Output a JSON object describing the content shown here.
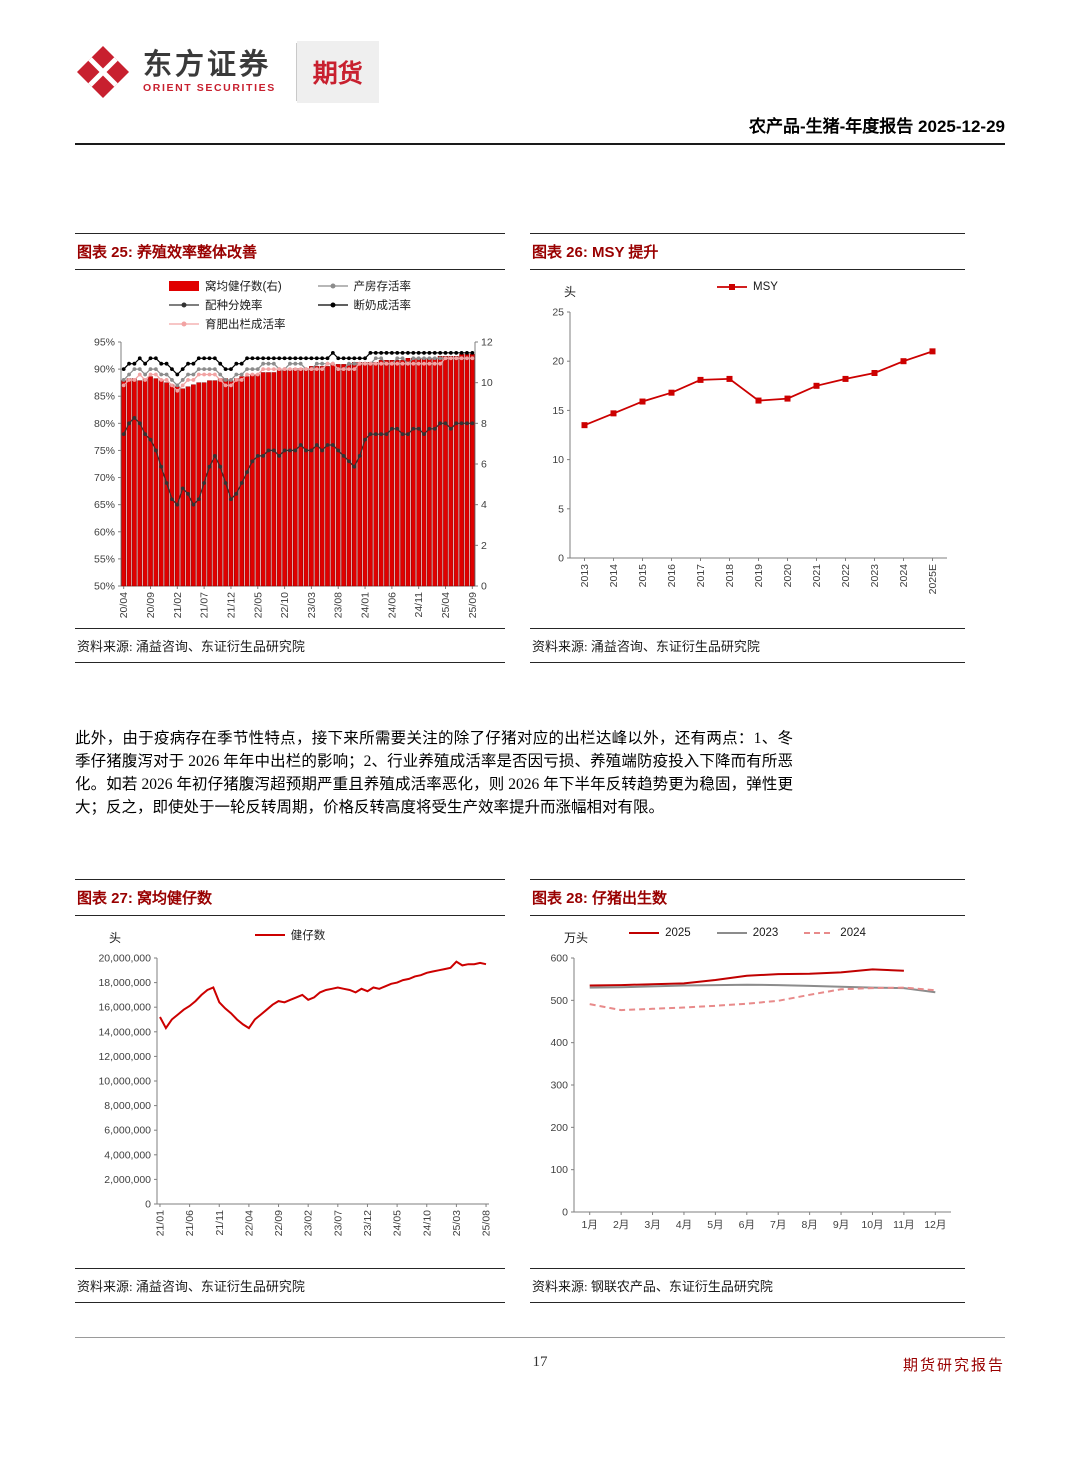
{
  "header": {
    "logo_cn": "东方证券",
    "logo_en": "ORIENT SECURITIES",
    "division": "期货",
    "report_line": "农产品-生猪-年度报告 2025-12-29"
  },
  "colors": {
    "brand_red": "#c8202f",
    "title_red": "#990000",
    "chart_red": "#cc0000"
  },
  "figures": [
    {
      "title": "图表 25: 养殖效率整体改善",
      "source": "资料来源: 涌益咨询、东证衍生品研究院"
    },
    {
      "title": "图表 26: MSY 提升",
      "source": "资料来源: 涌益咨询、东证衍生品研究院"
    },
    {
      "title": "图表 27: 窝均健仔数",
      "source": "资料来源: 涌益咨询、东证衍生品研究院"
    },
    {
      "title": "图表 28: 仔猪出生数",
      "source": "资料来源: 钢联农产品、东证衍生品研究院"
    }
  ],
  "paragraph": "此外，由于疫病存在季节性特点，接下来所需要关注的除了仔猪对应的出栏达峰以外，还有两点：1、冬季仔猪腹泻对于 2026 年年中出栏的影响；2、行业养殖成活率是否因亏损、养殖端防疫投入下降而有所恶化。如若 2026 年初仔猪腹泻超预期严重且养殖成活率恶化，则 2026 年下半年反转趋势更为稳固，弹性更大；反之，即使处于一轮反转周期，价格反转高度将受生产效率提升而涨幅相对有限。",
  "footer": {
    "page_number": "17",
    "report_type": "期货研究报告"
  },
  "chart_data": [
    {
      "type": "bar",
      "title": "养殖效率整体改善",
      "unit": "",
      "y_left": {
        "min": 50,
        "max": 95,
        "step": 5,
        "format": "percent"
      },
      "y_right": {
        "min": 0,
        "max": 12,
        "step": 2
      },
      "x_tick_every": 5,
      "x_rotate": true,
      "categories": [
        "20/04",
        "20/05",
        "20/06",
        "20/07",
        "20/08",
        "20/09",
        "20/10",
        "20/11",
        "20/12",
        "21/01",
        "21/02",
        "21/03",
        "21/04",
        "21/05",
        "21/06",
        "21/07",
        "21/08",
        "21/09",
        "21/10",
        "21/11",
        "21/12",
        "22/01",
        "22/02",
        "22/03",
        "22/04",
        "22/05",
        "22/06",
        "22/07",
        "22/08",
        "22/09",
        "22/10",
        "22/11",
        "22/12",
        "23/01",
        "23/02",
        "23/03",
        "23/04",
        "23/05",
        "23/06",
        "23/07",
        "23/08",
        "23/09",
        "23/10",
        "23/11",
        "23/12",
        "24/01",
        "24/02",
        "24/03",
        "24/04",
        "24/05",
        "24/06",
        "24/07",
        "24/08",
        "24/09",
        "24/10",
        "24/11",
        "24/12",
        "25/01",
        "25/02",
        "25/03",
        "25/04",
        "25/05",
        "25/06",
        "25/07",
        "25/08",
        "25/09"
      ],
      "series": [
        {
          "name": "窝均健仔数(右)",
          "type": "bar",
          "axis": "right",
          "color": "#e00000",
          "edge": "#8b0000",
          "values": [
            10.1,
            10.2,
            10.2,
            10.1,
            10.2,
            10.3,
            10.2,
            10.1,
            10.0,
            9.9,
            9.8,
            9.7,
            9.8,
            9.9,
            10.0,
            10.0,
            10.1,
            10.1,
            10.2,
            10.2,
            10.1,
            10.2,
            10.3,
            10.3,
            10.4,
            10.4,
            10.5,
            10.5,
            10.5,
            10.6,
            10.6,
            10.6,
            10.7,
            10.7,
            10.7,
            10.8,
            10.8,
            10.8,
            10.8,
            10.9,
            10.9,
            10.9,
            10.9,
            11.0,
            11.0,
            11.0,
            11.0,
            11.0,
            11.1,
            11.1,
            11.1,
            11.1,
            11.1,
            11.2,
            11.2,
            11.2,
            11.2,
            11.2,
            11.2,
            11.3,
            11.3,
            11.3,
            11.3,
            11.4,
            11.4,
            11.4
          ]
        },
        {
          "name": "产房存活率",
          "type": "line",
          "axis": "left",
          "color": "#8c8c8c",
          "marker": "circle",
          "width": 1.2,
          "values": [
            88,
            89,
            90,
            90,
            89,
            90,
            90,
            89,
            89,
            88,
            87,
            88,
            89,
            89,
            90,
            90,
            90,
            90,
            89,
            88,
            88,
            89,
            89,
            90,
            90,
            90,
            91,
            91,
            91,
            90,
            90,
            91,
            91,
            91,
            90,
            90,
            91,
            91,
            91,
            91,
            90,
            90,
            91,
            91,
            91,
            91,
            91,
            92,
            92,
            91,
            91,
            92,
            92,
            91,
            92,
            92,
            92,
            92,
            92,
            92,
            92,
            92,
            92,
            92,
            92,
            92
          ]
        },
        {
          "name": "配种分娩率",
          "type": "line",
          "axis": "left",
          "color": "#333333",
          "marker": "circle",
          "width": 1.2,
          "values": [
            78,
            80,
            81,
            80,
            78,
            77,
            75,
            72,
            69,
            66,
            65,
            68,
            67,
            65,
            66,
            69,
            72,
            74,
            72,
            69,
            66,
            67,
            69,
            71,
            73,
            74,
            74,
            75,
            75,
            74,
            75,
            75,
            75,
            76,
            75,
            75,
            76,
            75,
            76,
            76,
            75,
            74,
            73,
            72,
            74,
            77,
            78,
            78,
            78,
            78,
            79,
            79,
            78,
            78,
            79,
            79,
            78,
            79,
            79,
            80,
            80,
            79,
            80,
            80,
            80,
            80
          ]
        },
        {
          "name": "断奶成活率",
          "type": "line",
          "axis": "left",
          "color": "#000000",
          "marker": "circle",
          "width": 1.2,
          "values": [
            90,
            91,
            91,
            92,
            91,
            92,
            92,
            91,
            91,
            90,
            89,
            90,
            91,
            91,
            92,
            92,
            92,
            92,
            91,
            90,
            90,
            91,
            91,
            92,
            92,
            92,
            92,
            92,
            92,
            92,
            92,
            92,
            92,
            92,
            92,
            92,
            92,
            92,
            92,
            93,
            92,
            92,
            92,
            92,
            92,
            92,
            93,
            93,
            93,
            93,
            93,
            93,
            93,
            93,
            93,
            93,
            93,
            93,
            93,
            93,
            93,
            93,
            93,
            93,
            93,
            93
          ]
        },
        {
          "name": "育肥出栏成活率",
          "type": "line",
          "axis": "left",
          "color": "#f2a3a3",
          "marker": "circle",
          "width": 1.2,
          "values": [
            87,
            88,
            88,
            89,
            88,
            89,
            89,
            88,
            88,
            87,
            86,
            87,
            88,
            88,
            89,
            89,
            89,
            89,
            88,
            87,
            87,
            88,
            88,
            89,
            89,
            89,
            90,
            90,
            90,
            90,
            90,
            90,
            90,
            90,
            90,
            90,
            90,
            90,
            91,
            91,
            90,
            90,
            90,
            90,
            91,
            91,
            91,
            91,
            91,
            91,
            91,
            91,
            91,
            91,
            91,
            91,
            91,
            91,
            91,
            91,
            92,
            92,
            92,
            92,
            92,
            92
          ]
        }
      ]
    },
    {
      "type": "line",
      "title": "MSY 提升",
      "unit": "头",
      "y_left": {
        "min": 0,
        "max": 25,
        "step": 5
      },
      "x_tick_every": 1,
      "x_rotate": true,
      "categories": [
        "2013",
        "2014",
        "2015",
        "2016",
        "2017",
        "2018",
        "2019",
        "2020",
        "2021",
        "2022",
        "2023",
        "2024",
        "2025E"
      ],
      "series": [
        {
          "name": "MSY",
          "type": "line",
          "axis": "left",
          "color": "#cc0000",
          "marker": "square",
          "width": 1.8,
          "values": [
            13.5,
            14.7,
            15.9,
            16.8,
            18.1,
            18.2,
            16.0,
            16.2,
            17.5,
            18.2,
            18.8,
            20.0,
            21.0
          ]
        }
      ]
    },
    {
      "type": "line",
      "title": "窝均健仔数",
      "unit": "头",
      "y_left": {
        "min": 0,
        "max": 20000000,
        "step": 2000000,
        "format": "group"
      },
      "x_tick_every": 5,
      "x_rotate": true,
      "categories": [
        "21/01",
        "21/02",
        "21/03",
        "21/04",
        "21/05",
        "21/06",
        "21/07",
        "21/08",
        "21/09",
        "21/10",
        "21/11",
        "21/12",
        "22/01",
        "22/02",
        "22/03",
        "22/04",
        "22/05",
        "22/06",
        "22/07",
        "22/08",
        "22/09",
        "22/10",
        "22/11",
        "22/12",
        "23/01",
        "23/02",
        "23/03",
        "23/04",
        "23/05",
        "23/06",
        "23/07",
        "23/08",
        "23/09",
        "23/10",
        "23/11",
        "23/12",
        "24/01",
        "24/02",
        "24/03",
        "24/04",
        "24/05",
        "24/06",
        "24/07",
        "24/08",
        "24/09",
        "24/10",
        "24/11",
        "24/12",
        "25/01",
        "25/02",
        "25/03",
        "25/04",
        "25/05",
        "25/06",
        "25/07",
        "25/08"
      ],
      "series": [
        {
          "name": "健仔数",
          "type": "line",
          "axis": "left",
          "color": "#cc0000",
          "width": 2,
          "values": [
            15200000,
            14300000,
            15000000,
            15400000,
            15800000,
            16100000,
            16500000,
            17000000,
            17400000,
            17600000,
            16400000,
            15900000,
            15500000,
            15000000,
            14600000,
            14300000,
            15000000,
            15400000,
            15800000,
            16200000,
            16500000,
            16400000,
            16600000,
            16800000,
            17000000,
            16600000,
            16800000,
            17200000,
            17400000,
            17500000,
            17600000,
            17500000,
            17400000,
            17200000,
            17500000,
            17300000,
            17600000,
            17500000,
            17700000,
            17900000,
            18000000,
            18200000,
            18300000,
            18500000,
            18600000,
            18800000,
            18900000,
            19000000,
            19100000,
            19200000,
            19700000,
            19400000,
            19500000,
            19500000,
            19600000,
            19500000
          ]
        }
      ]
    },
    {
      "type": "line",
      "title": "仔猪出生数",
      "unit": "万头",
      "y_left": {
        "min": 0,
        "max": 600,
        "step": 100
      },
      "x_tick_every": 1,
      "x_rotate": false,
      "categories": [
        "1月",
        "2月",
        "3月",
        "4月",
        "5月",
        "6月",
        "7月",
        "8月",
        "9月",
        "10月",
        "11月",
        "12月"
      ],
      "series": [
        {
          "name": "2025",
          "type": "line",
          "axis": "left",
          "color": "#c00000",
          "width": 2,
          "values": [
            535,
            536,
            538,
            540,
            548,
            558,
            562,
            563,
            566,
            573,
            570,
            null
          ]
        },
        {
          "name": "2023",
          "type": "line",
          "axis": "left",
          "color": "#8c8c8c",
          "width": 2,
          "values": [
            530,
            531,
            533,
            535,
            536,
            537,
            536,
            534,
            532,
            530,
            529,
            519
          ]
        },
        {
          "name": "2024",
          "type": "line",
          "axis": "left",
          "color": "#e88a8a",
          "width": 2,
          "dash": "6,4",
          "values": [
            491,
            477,
            480,
            483,
            487,
            492,
            499,
            513,
            526,
            529,
            530,
            524
          ]
        }
      ]
    }
  ]
}
